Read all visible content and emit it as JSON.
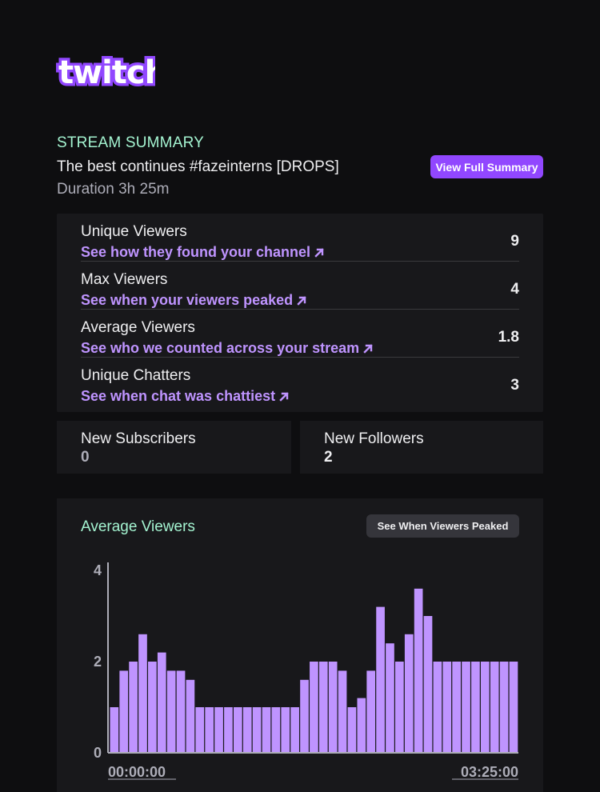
{
  "brand": {
    "logo_text": "twitch",
    "accent": "#9147ff",
    "mint": "#a4f4d1",
    "link": "#bf94ff"
  },
  "summary": {
    "kicker": "STREAM SUMMARY",
    "title": "The best continues #fazeinterns [DROPS]",
    "duration": "Duration 3h 25m",
    "button": "View Full Summary"
  },
  "stats": [
    {
      "label": "Unique Viewers",
      "link": "See how they found your channel",
      "value": "9"
    },
    {
      "label": "Max Viewers",
      "link": "See when your viewers peaked",
      "value": "4"
    },
    {
      "label": "Average Viewers",
      "link": "See who we counted across your stream",
      "value": "1.8"
    },
    {
      "label": "Unique Chatters",
      "link": "See when chat was chattiest",
      "value": "3"
    }
  ],
  "subscribers": {
    "label": "New Subscribers",
    "value": "0"
  },
  "followers": {
    "label": "New Followers",
    "value": "2"
  },
  "chart_section": {
    "title": "Average Viewers",
    "button": "See When Viewers Peaked"
  },
  "chart_data": {
    "type": "bar",
    "title": "Average Viewers",
    "xlabel": "",
    "ylabel": "",
    "ylim": [
      0,
      4
    ],
    "yticks": [
      "0",
      "2",
      "4"
    ],
    "x_start": "00:00:00",
    "x_end": "03:25:00",
    "bar_color": "#bf94ff",
    "values": [
      1,
      1.8,
      2,
      2.6,
      2,
      2.2,
      1.8,
      1.8,
      1.6,
      1,
      1,
      1,
      1,
      1,
      1,
      1,
      1,
      1,
      1,
      1,
      1.6,
      2,
      2,
      2,
      1.8,
      1,
      1.2,
      1.8,
      3.2,
      2.4,
      2,
      2.6,
      3.6,
      3,
      2,
      2,
      2,
      2,
      2,
      2,
      2,
      2,
      2
    ]
  }
}
